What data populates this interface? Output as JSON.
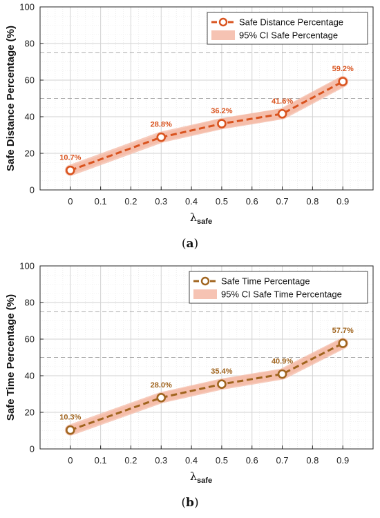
{
  "chart_data": [
    {
      "type": "line",
      "caption": "(a)",
      "caption_letter": "a",
      "x": [
        0,
        0.3,
        0.5,
        0.7,
        0.9
      ],
      "xticks": [
        "0",
        "0.1",
        "0.2",
        "0.3",
        "0.4",
        "0.5",
        "0.6",
        "0.7",
        "0.8",
        "0.9"
      ],
      "xlim": [
        -0.1,
        1.0
      ],
      "ylim": [
        0,
        100
      ],
      "yticks": [
        "0",
        "20",
        "40",
        "60",
        "80",
        "100"
      ],
      "xlabel_main": "λ",
      "xlabel_sub": "safe",
      "ylabel": "Safe Distance Percentage (%)",
      "ref_lines": [
        50,
        75
      ],
      "grid": true,
      "legend_position": "top-right",
      "series": [
        {
          "name": "Safe Distance Percentage",
          "values": [
            10.7,
            28.8,
            36.2,
            41.6,
            59.2
          ],
          "labels": [
            "10.7%",
            "28.8%",
            "36.2%",
            "41.6%",
            "59.2%"
          ],
          "color": "#d9531e"
        }
      ],
      "band": {
        "name": "95% CI Safe Percentage",
        "lower": [
          8.5,
          26.5,
          33.5,
          39.0,
          56.5
        ],
        "upper": [
          13.0,
          31.0,
          39.0,
          44.5,
          62.0
        ],
        "color": "#f4b9a6"
      }
    },
    {
      "type": "line",
      "caption": "(b)",
      "caption_letter": "b",
      "x": [
        0,
        0.3,
        0.5,
        0.7,
        0.9
      ],
      "xticks": [
        "0",
        "0.1",
        "0.2",
        "0.3",
        "0.4",
        "0.5",
        "0.6",
        "0.7",
        "0.8",
        "0.9"
      ],
      "xlim": [
        -0.1,
        1.0
      ],
      "ylim": [
        0,
        100
      ],
      "yticks": [
        "0",
        "20",
        "40",
        "60",
        "80",
        "100"
      ],
      "xlabel_main": "λ",
      "xlabel_sub": "safe",
      "ylabel": "Safe Time Percentage (%)",
      "ref_lines": [
        50,
        75
      ],
      "grid": true,
      "legend_position": "top-right",
      "series": [
        {
          "name": "Safe Time Percentage",
          "values": [
            10.3,
            28.0,
            35.4,
            40.9,
            57.7
          ],
          "labels": [
            "10.3%",
            "28.0%",
            "35.4%",
            "40.9%",
            "57.7%"
          ],
          "color": "#a0641e"
        }
      ],
      "band": {
        "name": "95% CI Safe Time Percentage",
        "lower": [
          8.0,
          25.5,
          33.0,
          38.5,
          55.0
        ],
        "upper": [
          12.5,
          30.5,
          38.0,
          43.5,
          60.5
        ],
        "color": "#f4b9a6"
      }
    }
  ]
}
